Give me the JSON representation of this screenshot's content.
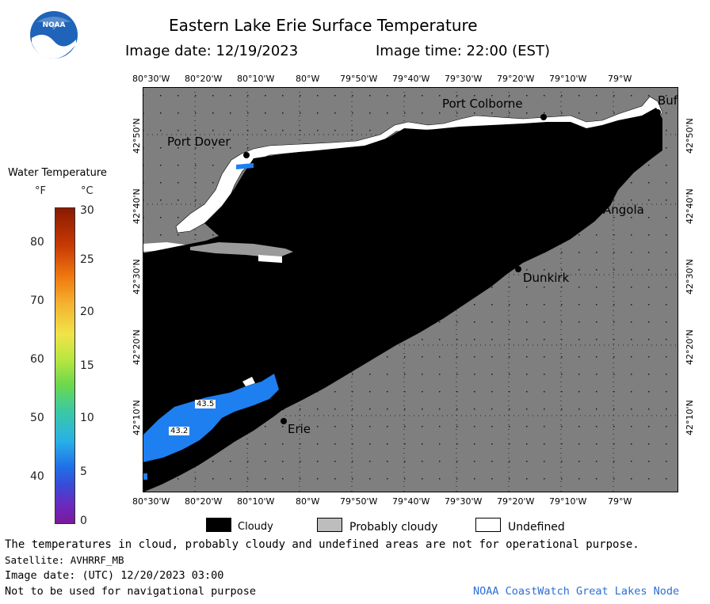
{
  "header": {
    "title": "Eastern Lake Erie Surface Temperature",
    "image_date": "Image date: 12/19/2023",
    "image_time": "Image time: 22:00 (EST)",
    "logo_text": "NOAA"
  },
  "colorbar": {
    "title": "Water Temperature",
    "unit_f": "°F",
    "unit_c": "°C",
    "f_ticks": [
      "80",
      "70",
      "60",
      "50",
      "40"
    ],
    "c_ticks": [
      "30",
      "25",
      "20",
      "15",
      "10",
      "5",
      "0"
    ]
  },
  "map": {
    "lon_labels": [
      "80°30'W",
      "80°20'W",
      "80°10'W",
      "80°W",
      "79°50'W",
      "79°40'W",
      "79°30'W",
      "79°20'W",
      "79°10'W",
      "79°W"
    ],
    "lat_labels": [
      "42°50'N",
      "42°40'N",
      "42°30'N",
      "42°20'N",
      "42°10'N"
    ],
    "places": {
      "port_colborne": "Port Colborne",
      "port_dover": "Port Dover",
      "buffalo": "Buf",
      "angola": "Angola",
      "dunkirk": "Dunkirk",
      "erie": "Erie"
    },
    "temps": {
      "t1": "43.5",
      "t2": "43.2"
    }
  },
  "legend": {
    "cloudy": "Cloudy",
    "probably_cloudy": "Probably cloudy",
    "undefined": "Undefined"
  },
  "footer": {
    "disclaimer": "The temperatures in cloud, probably cloudy and undefined areas are not for operational purpose.",
    "satellite": "Satellite: AVHRRF_MB",
    "utc_date": "Image date: (UTC) 12/20/2023  03:00",
    "nav": "Not to be used for navigational purpose",
    "credit": "NOAA CoastWatch Great Lakes Node"
  },
  "colors": {
    "land": "#7f7f7f",
    "cloud": "#000000",
    "water_cold": "#1e7ff0",
    "credit": "#2a6fd6"
  }
}
